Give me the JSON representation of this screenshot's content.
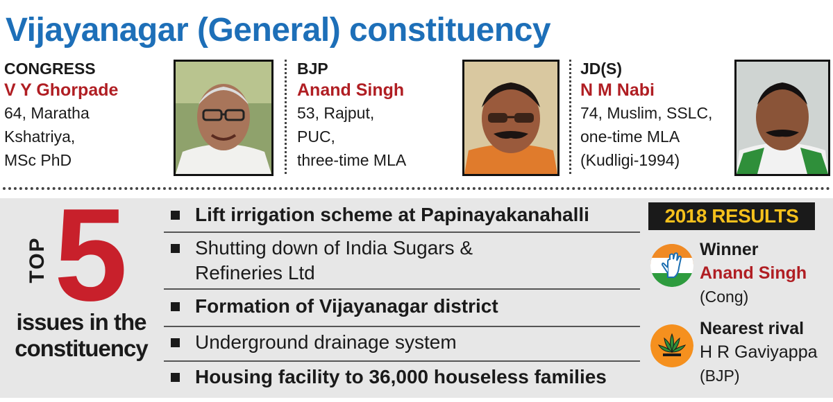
{
  "title": "Vijayanagar (General) constituency",
  "candidates": [
    {
      "party": "CONGRESS",
      "name": "V Y Ghorpade",
      "details": [
        "64, Maratha",
        "Kshatriya,",
        "MSc PhD"
      ]
    },
    {
      "party": "BJP",
      "name": "Anand Singh",
      "details": [
        "53, Rajput,",
        "PUC,",
        "three-time MLA"
      ]
    },
    {
      "party": "JD(S)",
      "name": "N M Nabi",
      "details": [
        "74, Muslim, SSLC,",
        "one-time MLA",
        "(Kudligi-1994)"
      ]
    }
  ],
  "issues_panel": {
    "top_word": "TOP",
    "number": "5",
    "caption": "issues in the constituency",
    "items": [
      "Lift irrigation scheme at Papinayakanahalli",
      "Shutting down of India Sugars & Refineries Ltd",
      "Formation of Vijayanagar district",
      "Underground drainage system",
      "Housing facility to 36,000 houseless families"
    ]
  },
  "results": {
    "header": "2018 RESULTS",
    "winner": {
      "label": "Winner",
      "name": "Anand Singh",
      "party": "(Cong)",
      "logo": "congress-hand-icon"
    },
    "rival": {
      "label": "Nearest rival",
      "name": "H R Gaviyappa",
      "party": "(BJP)",
      "logo": "bjp-lotus-icon"
    }
  },
  "colors": {
    "title": "#1d6fb8",
    "accent_red": "#b01e23",
    "header_yellow": "#f5c01c",
    "panel_grey": "#e7e7e7"
  }
}
